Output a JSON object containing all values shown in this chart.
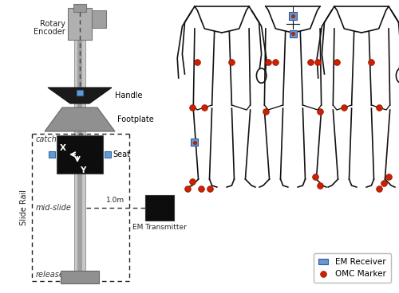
{
  "figure_width": 5.0,
  "figure_height": 3.68,
  "dpi": 100,
  "em_receiver_color": "#6699cc",
  "omc_marker_color": "#cc2200",
  "body_color": "#111111",
  "rail_color": "#b0b0b0",
  "rail_dark": "#888888",
  "handle_color": "#222222",
  "footplate_color": "#909090",
  "encoder_color": "#aaaaaa",
  "em_transmitter_color": "#111111",
  "label_catch": "catch",
  "label_midslide": "mid-slide",
  "label_release": "release",
  "label_handle": "Handle",
  "label_footplate": "Footplate",
  "label_seat": "Seat",
  "label_encoder_line1": "Rotary",
  "label_encoder_line2": "Encoder",
  "label_em_transmitter": "EM Transmitter",
  "label_slide_rail": "Slide Rail",
  "label_distance": "1.0m",
  "legend_em": "EM Receiver",
  "legend_omc": "OMC Marker"
}
